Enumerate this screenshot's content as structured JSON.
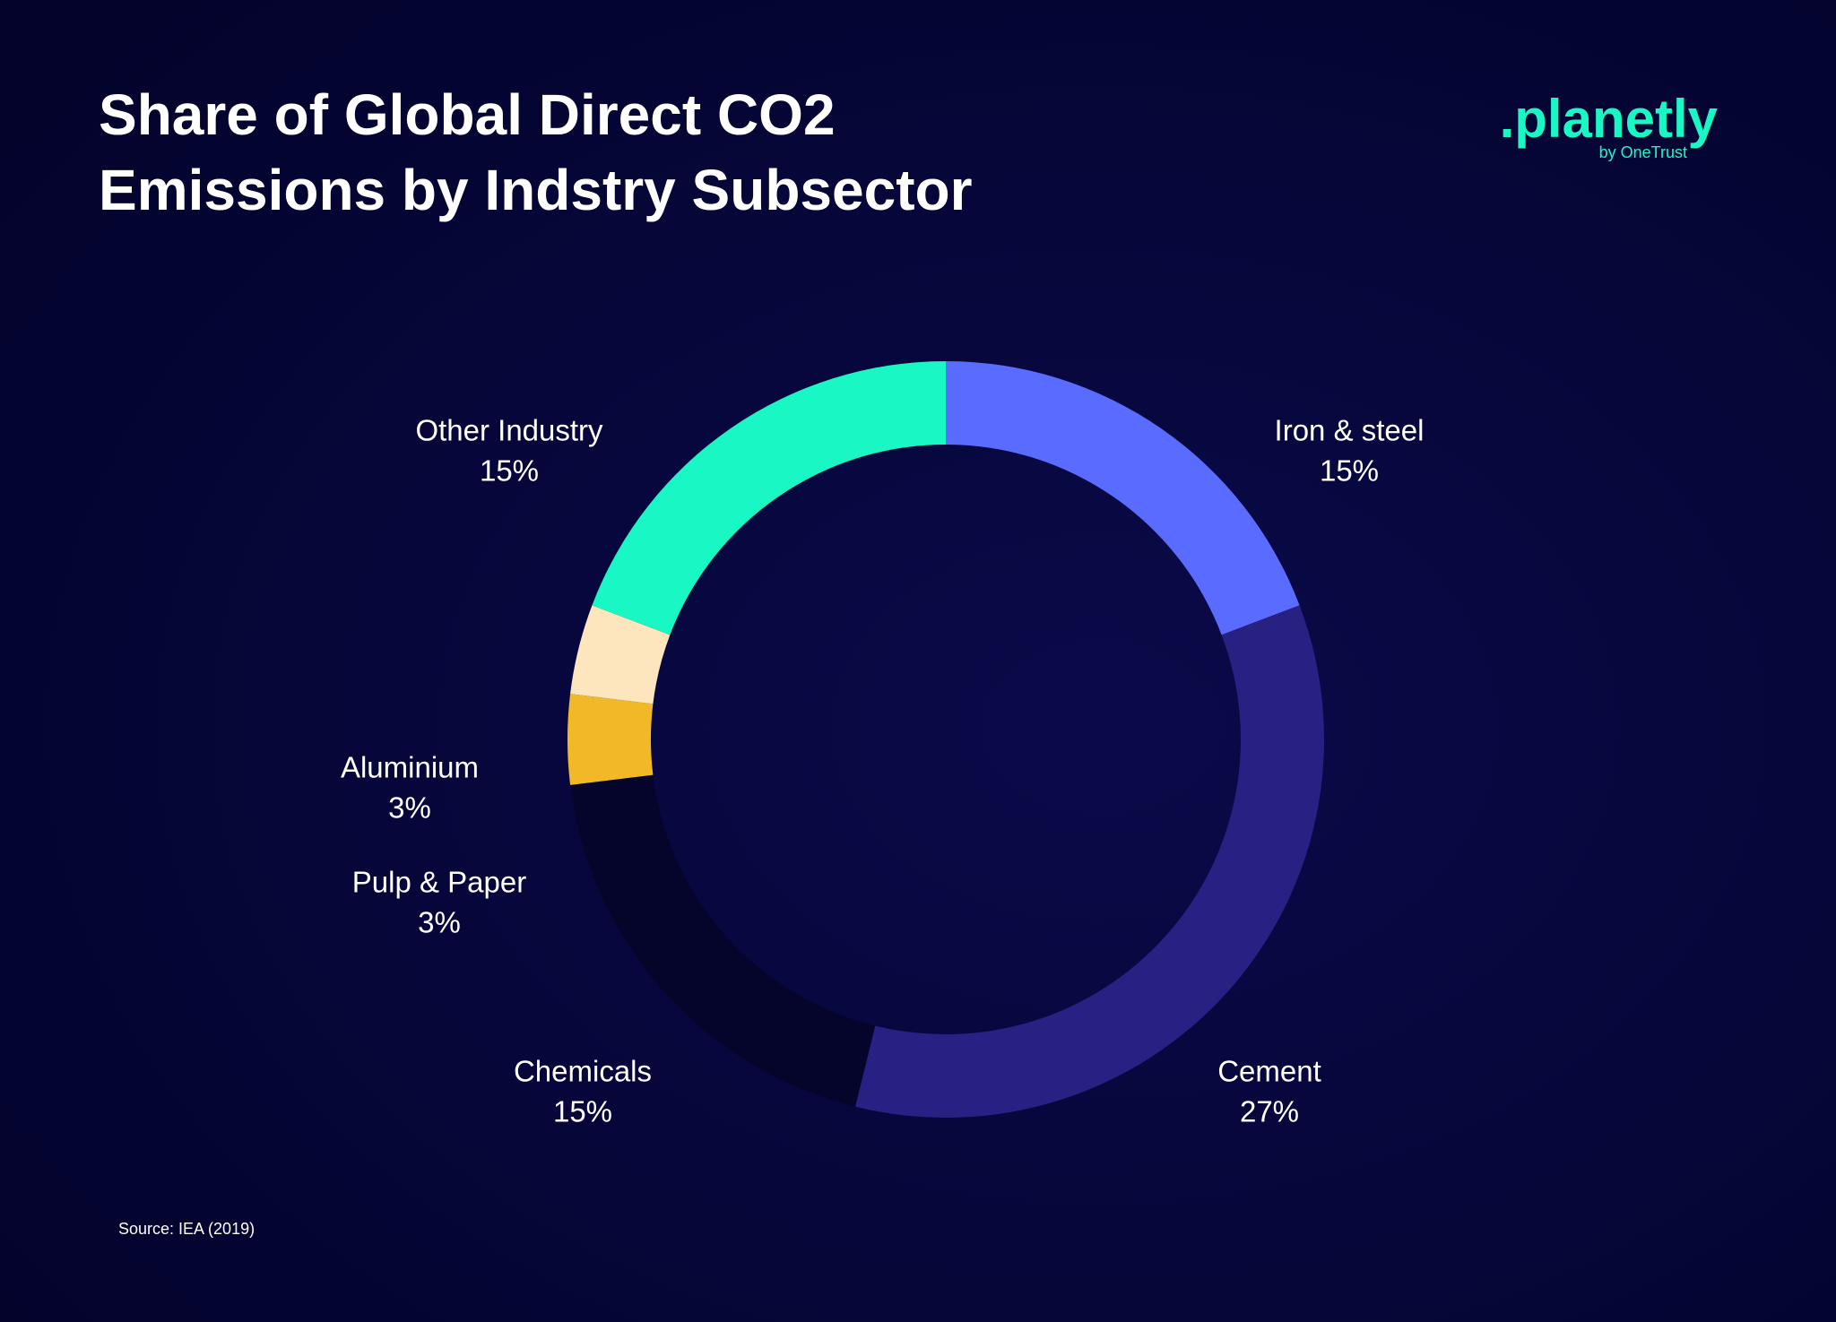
{
  "chart_data": {
    "type": "donut",
    "title": "Share of Global Direct CO2 Emissions by Indstry Subsector",
    "title_lines": [
      "Share of Global Direct CO2",
      "Emissions by Indstry Subsector"
    ],
    "categories": [
      "Iron & steel",
      "Cement",
      "Chemicals",
      "Pulp & Paper",
      "Aluminium",
      "Other Industry"
    ],
    "values": [
      15,
      27,
      15,
      3,
      3,
      15
    ],
    "value_labels": [
      "15%",
      "27%",
      "15%",
      "3%",
      "3%",
      "15%"
    ],
    "colors": [
      "#5a6bff",
      "#282184",
      "#05052c",
      "#f1b928",
      "#fde5bd",
      "#19f7c4"
    ],
    "source": "Source: IEA (2019)"
  },
  "logo": {
    "name": ".planetly",
    "tagline": "by OneTrust"
  }
}
